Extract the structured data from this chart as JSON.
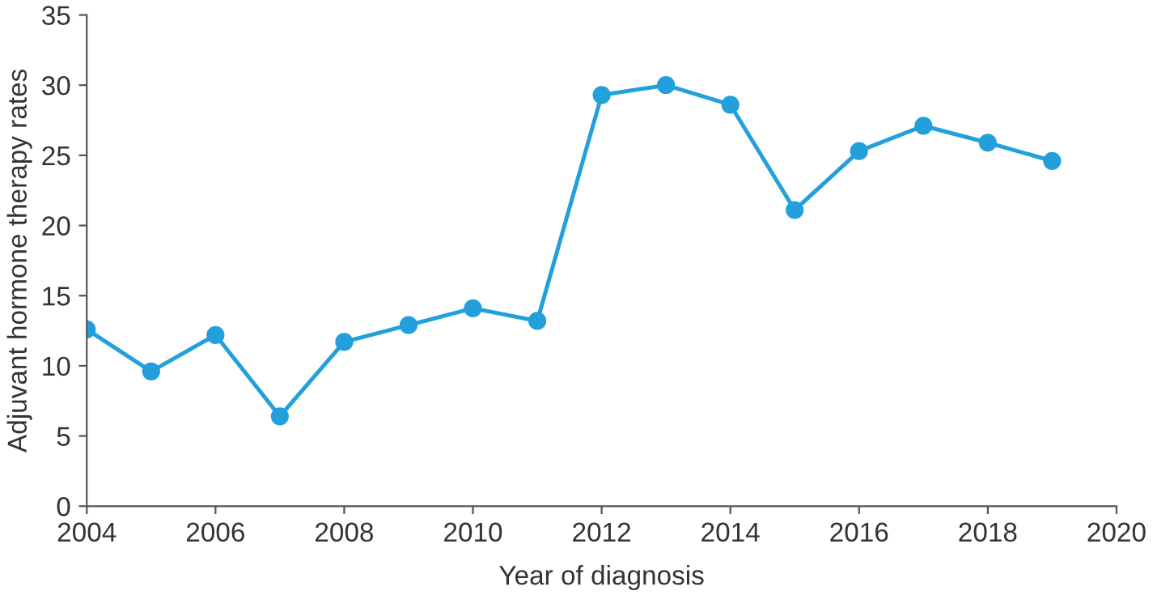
{
  "chart_data": {
    "type": "line",
    "xlabel": "Year of diagnosis",
    "ylabel": "Adjuvant hormone therapy rates",
    "x": [
      2004,
      2005,
      2006,
      2007,
      2008,
      2009,
      2010,
      2011,
      2012,
      2013,
      2014,
      2015,
      2016,
      2017,
      2018,
      2019
    ],
    "series": [
      {
        "color": "#23a0dc",
        "values": [
          12.6,
          9.6,
          12.2,
          6.4,
          11.7,
          12.9,
          14.1,
          13.2,
          29.3,
          30.0,
          28.6,
          21.1,
          25.3,
          27.1,
          25.9,
          24.6
        ]
      }
    ],
    "xlim": [
      2004,
      2020
    ],
    "xticks": [
      2004,
      2006,
      2008,
      2010,
      2012,
      2014,
      2016,
      2018,
      2020
    ],
    "ylim": [
      0,
      35
    ],
    "yticks": [
      0,
      5,
      10,
      15,
      20,
      25,
      30,
      35
    ],
    "marker": "circle",
    "line_style": "solid",
    "grid": false,
    "legend": false
  }
}
